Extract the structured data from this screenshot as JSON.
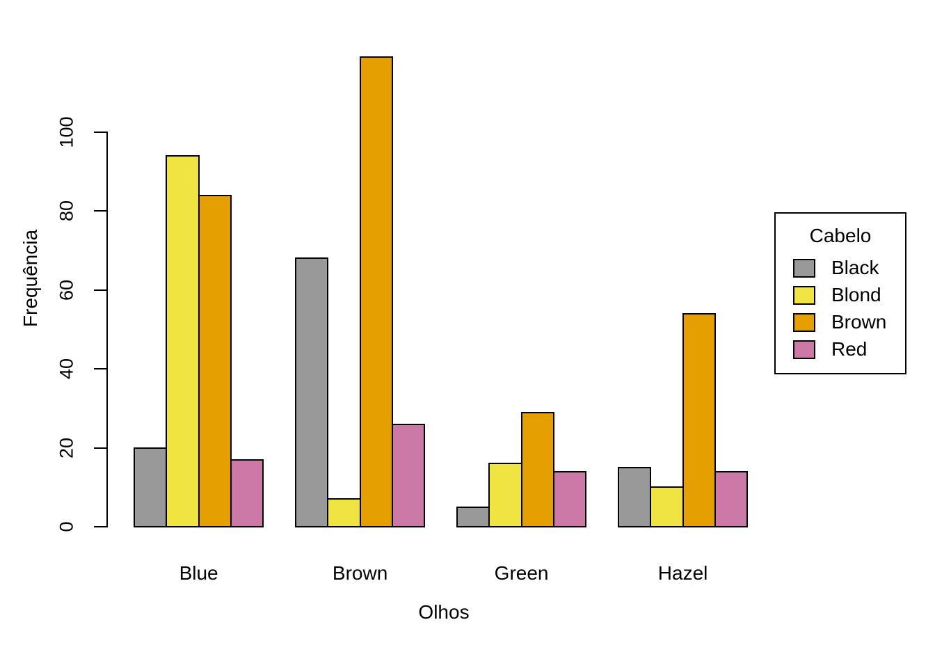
{
  "chart_data": {
    "type": "bar",
    "subtype": "grouped",
    "title": "",
    "xlabel": "Olhos",
    "ylabel": "Frequência",
    "categories": [
      "Blue",
      "Brown",
      "Green",
      "Hazel"
    ],
    "series": [
      {
        "name": "Black",
        "color": "#999999",
        "values": [
          20,
          68,
          5,
          15
        ]
      },
      {
        "name": "Blond",
        "color": "#F0E442",
        "values": [
          94,
          7,
          16,
          10
        ]
      },
      {
        "name": "Brown",
        "color": "#E69F00",
        "values": [
          84,
          119,
          29,
          54
        ]
      },
      {
        "name": "Red",
        "color": "#CC79A7",
        "values": [
          17,
          26,
          14,
          14
        ]
      }
    ],
    "y_ticks": [
      0,
      20,
      40,
      60,
      80,
      100
    ],
    "ylim": [
      0,
      120
    ],
    "grid": false,
    "legend": {
      "title": "Cabelo",
      "position": "right",
      "entries": [
        "Black",
        "Blond",
        "Brown",
        "Red"
      ]
    },
    "bar_border_color": "#000000",
    "background_color": "#FFFFFF",
    "axis_color": "#000000"
  }
}
